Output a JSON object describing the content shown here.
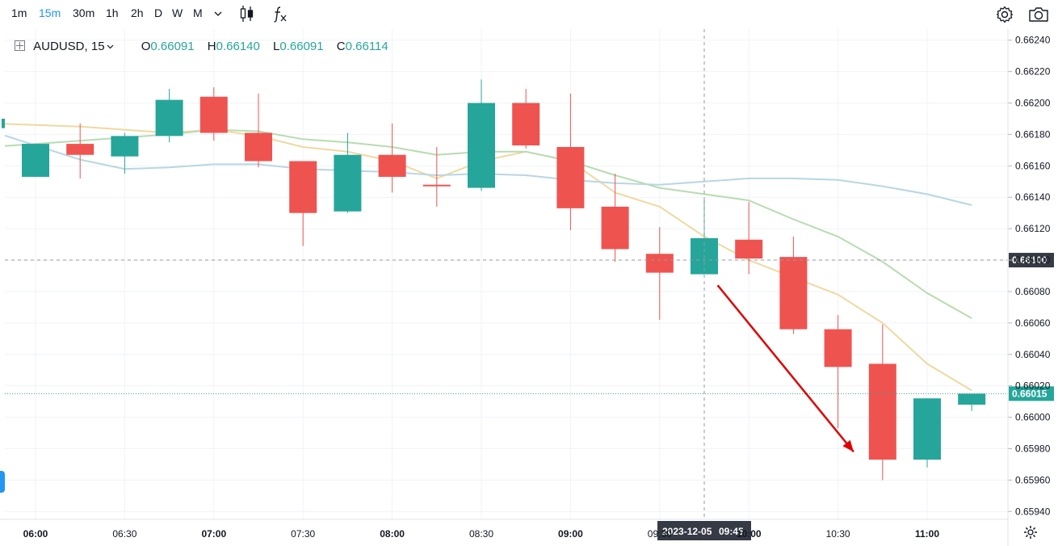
{
  "toolbar": {
    "timeframes": [
      "1m",
      "15m",
      "30m",
      "1h",
      "2h",
      "D",
      "W",
      "M"
    ],
    "active_timeframe": "15m",
    "more_icon": "chevron-down-icon",
    "chart_type_icon": "candles-icon",
    "indicators_icon": "fx-icon",
    "settings_icon": "gear-icon",
    "snapshot_icon": "camera-icon"
  },
  "legend": {
    "symbol": "AUDUSD, 15",
    "open_label": "O",
    "open": "0.66091",
    "high_label": "H",
    "high": "0.66140",
    "low_label": "L",
    "low": "0.66091",
    "close_label": "C",
    "close": "0.66114"
  },
  "crosshair": {
    "date_label": "2023-12-05",
    "time_label": "09:45",
    "price_label": "0.66100",
    "price": 0.661
  },
  "last_price": {
    "label": "0.66015",
    "price": 0.66015,
    "color": "#26a69a"
  },
  "colors": {
    "up": "#26a69a",
    "down": "#ef5350",
    "ma_yellow": "#efd9a0",
    "ma_green": "#b7dcb0",
    "ma_blue": "#b8d6e3",
    "arrow": "#e00000"
  },
  "chart_data": {
    "type": "candlestick",
    "title": "",
    "symbol": "AUDUSD",
    "interval": "15",
    "ylim": [
      0.65935,
      0.66245
    ],
    "y_ticks": [
      "0.66240",
      "0.66220",
      "0.66200",
      "0.66180",
      "0.66160",
      "0.66140",
      "0.66120",
      "0.66100",
      "0.66080",
      "0.66060",
      "0.66040",
      "0.66020",
      "0.66000",
      "0.65980",
      "0.65960",
      "0.65940"
    ],
    "x_ticks": [
      {
        "i": 0,
        "label": "06:00",
        "bold": true
      },
      {
        "i": 2,
        "label": "06:30",
        "bold": false
      },
      {
        "i": 4,
        "label": "07:00",
        "bold": true
      },
      {
        "i": 6,
        "label": "07:30",
        "bold": false
      },
      {
        "i": 8,
        "label": "08:00",
        "bold": true
      },
      {
        "i": 10,
        "label": "08:30",
        "bold": false
      },
      {
        "i": 12,
        "label": "09:00",
        "bold": true
      },
      {
        "i": 14,
        "label": "09:30",
        "bold": false
      },
      {
        "i": 16,
        "label": "10:00",
        "bold": true
      },
      {
        "i": 18,
        "label": "10:30",
        "bold": false
      },
      {
        "i": 20,
        "label": "11:00",
        "bold": true
      }
    ],
    "grid": true,
    "crosshair_index": 15,
    "candles": [
      {
        "t": "06:00",
        "o": 0.66153,
        "h": 0.66174,
        "l": 0.66153,
        "c": 0.66174
      },
      {
        "t": "06:15",
        "o": 0.66174,
        "h": 0.66187,
        "l": 0.66152,
        "c": 0.66167
      },
      {
        "t": "06:30",
        "o": 0.66166,
        "h": 0.66181,
        "l": 0.66155,
        "c": 0.66179
      },
      {
        "t": "06:45",
        "o": 0.66179,
        "h": 0.66209,
        "l": 0.66175,
        "c": 0.66202
      },
      {
        "t": "07:00",
        "o": 0.66204,
        "h": 0.6621,
        "l": 0.66176,
        "c": 0.66181
      },
      {
        "t": "07:15",
        "o": 0.66181,
        "h": 0.66206,
        "l": 0.66159,
        "c": 0.66163
      },
      {
        "t": "07:30",
        "o": 0.66163,
        "h": 0.66163,
        "l": 0.66109,
        "c": 0.6613
      },
      {
        "t": "07:45",
        "o": 0.66131,
        "h": 0.66181,
        "l": 0.6613,
        "c": 0.66167
      },
      {
        "t": "08:00",
        "o": 0.66167,
        "h": 0.66187,
        "l": 0.66143,
        "c": 0.66153
      },
      {
        "t": "08:15",
        "o": 0.66148,
        "h": 0.66172,
        "l": 0.66134,
        "c": 0.66147
      },
      {
        "t": "08:30",
        "o": 0.66146,
        "h": 0.66215,
        "l": 0.66144,
        "c": 0.662
      },
      {
        "t": "08:45",
        "o": 0.662,
        "h": 0.66209,
        "l": 0.66171,
        "c": 0.66173
      },
      {
        "t": "09:00",
        "o": 0.66172,
        "h": 0.66206,
        "l": 0.66119,
        "c": 0.66133
      },
      {
        "t": "09:15",
        "o": 0.66134,
        "h": 0.66155,
        "l": 0.66099,
        "c": 0.66107
      },
      {
        "t": "09:30",
        "o": 0.66104,
        "h": 0.66121,
        "l": 0.66062,
        "c": 0.66092
      },
      {
        "t": "09:45",
        "o": 0.66091,
        "h": 0.6614,
        "l": 0.66091,
        "c": 0.66114
      },
      {
        "t": "10:00",
        "o": 0.66113,
        "h": 0.66137,
        "l": 0.66091,
        "c": 0.66101
      },
      {
        "t": "10:15",
        "o": 0.66102,
        "h": 0.66115,
        "l": 0.66053,
        "c": 0.66056
      },
      {
        "t": "10:30",
        "o": 0.66056,
        "h": 0.66065,
        "l": 0.65993,
        "c": 0.66032
      },
      {
        "t": "10:45",
        "o": 0.66034,
        "h": 0.66059,
        "l": 0.6596,
        "c": 0.65973
      },
      {
        "t": "11:00",
        "o": 0.65973,
        "h": 0.66012,
        "l": 0.65968,
        "c": 0.66012
      },
      {
        "t": "11:15",
        "o": 0.66008,
        "h": 0.66015,
        "l": 0.66004,
        "c": 0.66015
      }
    ],
    "moving_averages": [
      {
        "color": "#efd9a0",
        "values": [
          0.66186,
          0.66185,
          0.66183,
          0.66181,
          0.66183,
          0.66179,
          0.66172,
          0.66169,
          0.66163,
          0.66152,
          0.66163,
          0.66169,
          0.66163,
          0.66143,
          0.66134,
          0.66115,
          0.661,
          0.66089,
          0.66078,
          0.6606,
          0.66034,
          0.66017
        ]
      },
      {
        "color": "#b7dcb0",
        "values": [
          0.66174,
          0.66176,
          0.66178,
          0.6618,
          0.66183,
          0.66182,
          0.66177,
          0.66175,
          0.66172,
          0.66167,
          0.66169,
          0.66169,
          0.66163,
          0.66154,
          0.66146,
          0.66142,
          0.66138,
          0.66126,
          0.66115,
          0.66099,
          0.66079,
          0.66063
        ]
      },
      {
        "color": "#b8d6e3",
        "values": [
          0.66173,
          0.66164,
          0.66158,
          0.66159,
          0.66161,
          0.66161,
          0.66158,
          0.66157,
          0.66156,
          0.66154,
          0.66155,
          0.66154,
          0.66151,
          0.66149,
          0.66148,
          0.6615,
          0.66152,
          0.66152,
          0.66151,
          0.66147,
          0.66142,
          0.66135
        ]
      }
    ],
    "annotations": [
      {
        "type": "arrow",
        "from": {
          "i": 15.3,
          "price": 0.66084
        },
        "to": {
          "i": 18.35,
          "price": 0.65978
        },
        "color": "#e00000"
      }
    ]
  }
}
